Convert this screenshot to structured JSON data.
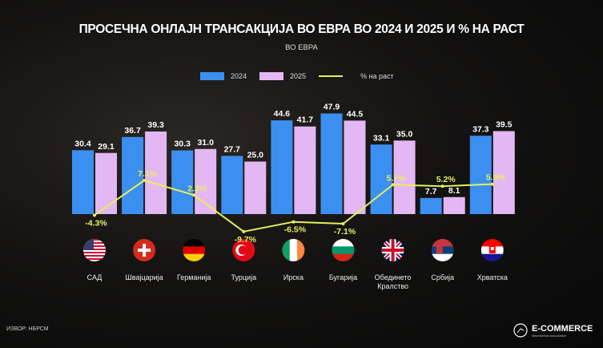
{
  "chart_data": {
    "type": "bar",
    "title": "ПРОСЕЧНА ОНЛАЈН ТРАНСАКЦИЈА ВО ЕВРА ВО 2024 И 2025 И % НА РАСТ",
    "subtitle": "ВО ЕВРА",
    "categories": [
      "САД",
      "Швајцарија",
      "Германија",
      "Турција",
      "Ирска",
      "Бугарија",
      "Обединето Кралство",
      "Србија",
      "Хрватска"
    ],
    "series": [
      {
        "name": "2024",
        "type": "bar",
        "color": "#3b8ff0",
        "values": [
          30.4,
          36.7,
          30.3,
          27.7,
          44.6,
          47.9,
          33.1,
          7.7,
          37.3
        ]
      },
      {
        "name": "2025",
        "type": "bar",
        "color": "#e3b7f3",
        "values": [
          29.1,
          39.3,
          31.0,
          25.0,
          41.7,
          44.5,
          35.0,
          8.1,
          39.5
        ]
      },
      {
        "name": "% на раст",
        "type": "line",
        "color": "#e6ef5a",
        "values": [
          -4.3,
          7.1,
          2.3,
          -9.7,
          -6.5,
          -7.1,
          5.7,
          5.2,
          5.9
        ],
        "labels": [
          "-4.3%",
          "7.1%",
          "2.3%",
          "-9.7%",
          "-6.5%",
          "-7.1%",
          "5.7%",
          "5.2%",
          "5.9%"
        ]
      }
    ],
    "legend_position": "top-center"
  },
  "flags": [
    "us-flag",
    "switzerland-flag",
    "germany-flag",
    "turkey-flag",
    "ireland-flag",
    "bulgaria-flag",
    "uk-flag",
    "serbia-flag",
    "croatia-flag"
  ],
  "source": "ИЗВОР: НБРСМ",
  "logo": {
    "name": "E-COMMERCE",
    "tagline": "Macedonian Association"
  }
}
